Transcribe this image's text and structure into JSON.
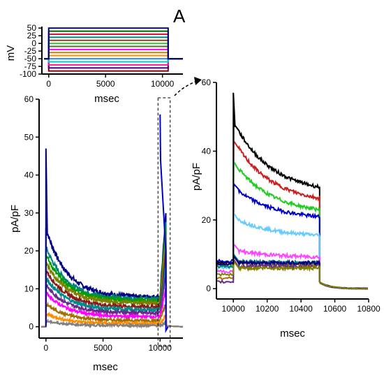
{
  "panel_label": "A",
  "chart_data": [
    {
      "type": "line",
      "title": "",
      "xlabel": "msec",
      "ylabel": "mV",
      "xlim": [
        -600,
        11800
      ],
      "ylim": [
        -100,
        55
      ],
      "xticks": [
        0,
        5000,
        10000
      ],
      "yticks": [
        50,
        25,
        0,
        -25,
        -50,
        -75,
        -100
      ],
      "protocol": {
        "holding_mv": -50,
        "step_start_ms": 0,
        "step_end_ms": 10500,
        "step_levels_mv": [
          -90,
          -80,
          -70,
          -60,
          -50,
          -40,
          -30,
          -20,
          -10,
          0,
          10,
          20,
          30,
          40,
          50
        ]
      }
    },
    {
      "type": "line",
      "title": "",
      "xlabel": "msec",
      "ylabel": "pA/pF",
      "xlim": [
        -600,
        12000
      ],
      "ylim": [
        -3,
        60
      ],
      "xticks": [
        0,
        5000,
        10000
      ],
      "yticks": [
        0,
        10,
        20,
        30,
        40,
        50,
        60
      ],
      "step_start_ms": 0,
      "step_end_ms": 10500,
      "series": [
        {
          "color": "#000080",
          "peak": 26,
          "steady": 7.8
        },
        {
          "color": "#008080",
          "peak": 21,
          "steady": 7.2
        },
        {
          "color": "#00a000",
          "peak": 19,
          "steady": 6.8
        },
        {
          "color": "#808000",
          "peak": 17,
          "steady": 6.2
        },
        {
          "color": "#8a1a1a",
          "peak": 15,
          "steady": 5.2
        },
        {
          "color": "#008b8b",
          "peak": 13,
          "steady": 4.4
        },
        {
          "color": "#6a2a8a",
          "peak": 11,
          "steady": 3.6
        },
        {
          "color": "#ff00ff",
          "peak": 9,
          "steady": 2.6
        },
        {
          "color": "#a07000",
          "peak": 6,
          "steady": 1.6
        },
        {
          "color": "#ff8c00",
          "peak": 3.5,
          "steady": 0.8
        },
        {
          "color": "#808080",
          "peak": 1.5,
          "steady": 0.3
        }
      ],
      "inset_box": {
        "x0": 10000,
        "x1": 10700,
        "y0": 0,
        "y1": 60
      }
    },
    {
      "type": "line",
      "title": "",
      "xlabel": "msec",
      "ylabel": "pA/pF",
      "xlim": [
        9900,
        10800
      ],
      "ylim": [
        -3,
        60
      ],
      "xticks": [
        10000,
        10200,
        10400,
        10600,
        10800
      ],
      "yticks": [
        0,
        20,
        40,
        60
      ],
      "pulse_start_ms": 10000,
      "pulse_end_ms": 10510,
      "series": [
        {
          "color": "#000000",
          "peak": 46,
          "end": 27.5,
          "baseline": 7.5
        },
        {
          "color": "#cc2020",
          "peak": 41,
          "end": 24.5,
          "baseline": 7.0
        },
        {
          "color": "#22cc22",
          "peak": 35,
          "end": 21.5,
          "baseline": 6.5
        },
        {
          "color": "#0000cc",
          "peak": 28.5,
          "end": 20,
          "baseline": 8.0
        },
        {
          "color": "#66ccff",
          "peak": 20,
          "end": 15,
          "baseline": 6.0
        },
        {
          "color": "#ff44ff",
          "peak": 11,
          "end": 9,
          "baseline": 5.0
        },
        {
          "color": "#b07000",
          "peak": 7.5,
          "end": 7,
          "baseline": 3.0
        },
        {
          "color": "#008080",
          "peak": 8,
          "end": 7.5,
          "baseline": 6.5
        },
        {
          "color": "#000080",
          "peak": 7.5,
          "end": 7.5,
          "baseline": 7.2
        },
        {
          "color": "#6a2a8a",
          "peak": 6.5,
          "end": 6.5,
          "baseline": 2.0
        },
        {
          "color": "#808000",
          "peak": 6,
          "end": 6,
          "baseline": 4.0
        }
      ]
    }
  ]
}
